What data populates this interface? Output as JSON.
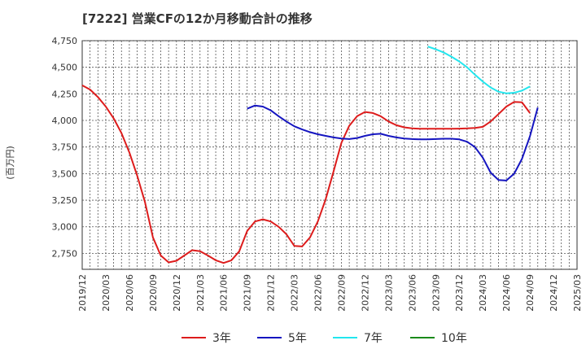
{
  "chart_data": {
    "type": "line",
    "title": "[7222]  営業CFの12か月移動合計の推移",
    "ylabel": "(百万円)",
    "ylim": [
      2600,
      4750
    ],
    "yticks": [
      2750,
      3000,
      3250,
      3500,
      3750,
      4000,
      4250,
      4500,
      4750
    ],
    "ytick_labels": [
      "2,750",
      "3,000",
      "3,250",
      "3,500",
      "3,750",
      "4,000",
      "4,250",
      "4,500",
      "4,750"
    ],
    "xticks": [
      "2019/12",
      "2020/03",
      "2020/06",
      "2020/09",
      "2020/12",
      "2021/03",
      "2021/06",
      "2021/09",
      "2021/12",
      "2022/03",
      "2022/06",
      "2022/09",
      "2022/12",
      "2023/03",
      "2023/06",
      "2023/09",
      "2023/12",
      "2024/03",
      "2024/06",
      "2024/09",
      "2024/12",
      "2025/03"
    ],
    "x_start": "2019/12",
    "x_end": "2025/03",
    "grid": true,
    "legend_position": "bottom",
    "series": [
      {
        "name": "3年",
        "color": "#dd1c1c",
        "points": [
          [
            "2019/12",
            4330
          ],
          [
            "2020/01",
            4290
          ],
          [
            "2020/02",
            4220
          ],
          [
            "2020/03",
            4130
          ],
          [
            "2020/04",
            4020
          ],
          [
            "2020/05",
            3880
          ],
          [
            "2020/06",
            3700
          ],
          [
            "2020/07",
            3480
          ],
          [
            "2020/08",
            3230
          ],
          [
            "2020/09",
            2900
          ],
          [
            "2020/10",
            2730
          ],
          [
            "2020/11",
            2665
          ],
          [
            "2020/12",
            2680
          ],
          [
            "2021/01",
            2730
          ],
          [
            "2021/02",
            2780
          ],
          [
            "2021/03",
            2770
          ],
          [
            "2021/04",
            2730
          ],
          [
            "2021/05",
            2685
          ],
          [
            "2021/06",
            2660
          ],
          [
            "2021/07",
            2685
          ],
          [
            "2021/08",
            2770
          ],
          [
            "2021/09",
            2960
          ],
          [
            "2021/10",
            3050
          ],
          [
            "2021/11",
            3070
          ],
          [
            "2021/12",
            3050
          ],
          [
            "2022/01",
            3000
          ],
          [
            "2022/02",
            2930
          ],
          [
            "2022/03",
            2820
          ],
          [
            "2022/04",
            2815
          ],
          [
            "2022/05",
            2900
          ],
          [
            "2022/06",
            3050
          ],
          [
            "2022/07",
            3260
          ],
          [
            "2022/08",
            3520
          ],
          [
            "2022/09",
            3790
          ],
          [
            "2022/10",
            3950
          ],
          [
            "2022/11",
            4040
          ],
          [
            "2022/12",
            4080
          ],
          [
            "2023/01",
            4070
          ],
          [
            "2023/02",
            4040
          ],
          [
            "2023/03",
            3990
          ],
          [
            "2023/04",
            3955
          ],
          [
            "2023/05",
            3935
          ],
          [
            "2023/06",
            3925
          ],
          [
            "2023/07",
            3922
          ],
          [
            "2023/08",
            3922
          ],
          [
            "2023/09",
            3922
          ],
          [
            "2023/10",
            3922
          ],
          [
            "2023/11",
            3922
          ],
          [
            "2023/12",
            3923
          ],
          [
            "2024/01",
            3925
          ],
          [
            "2024/02",
            3930
          ],
          [
            "2024/03",
            3940
          ],
          [
            "2024/04",
            3990
          ],
          [
            "2024/05",
            4060
          ],
          [
            "2024/06",
            4130
          ],
          [
            "2024/07",
            4175
          ],
          [
            "2024/08",
            4170
          ],
          [
            "2024/09",
            4070
          ]
        ]
      },
      {
        "name": "5年",
        "color": "#1515c0",
        "points": [
          [
            "2021/09",
            4110
          ],
          [
            "2021/10",
            4140
          ],
          [
            "2021/11",
            4130
          ],
          [
            "2021/12",
            4095
          ],
          [
            "2022/01",
            4040
          ],
          [
            "2022/02",
            3990
          ],
          [
            "2022/03",
            3945
          ],
          [
            "2022/04",
            3915
          ],
          [
            "2022/05",
            3890
          ],
          [
            "2022/06",
            3870
          ],
          [
            "2022/07",
            3855
          ],
          [
            "2022/08",
            3840
          ],
          [
            "2022/09",
            3830
          ],
          [
            "2022/10",
            3825
          ],
          [
            "2022/11",
            3835
          ],
          [
            "2022/12",
            3855
          ],
          [
            "2023/01",
            3870
          ],
          [
            "2023/02",
            3875
          ],
          [
            "2023/03",
            3855
          ],
          [
            "2023/04",
            3840
          ],
          [
            "2023/05",
            3830
          ],
          [
            "2023/06",
            3825
          ],
          [
            "2023/07",
            3823
          ],
          [
            "2023/08",
            3823
          ],
          [
            "2023/09",
            3825
          ],
          [
            "2023/10",
            3828
          ],
          [
            "2023/11",
            3828
          ],
          [
            "2023/12",
            3822
          ],
          [
            "2024/01",
            3800
          ],
          [
            "2024/02",
            3750
          ],
          [
            "2024/03",
            3650
          ],
          [
            "2024/04",
            3510
          ],
          [
            "2024/05",
            3440
          ],
          [
            "2024/06",
            3435
          ],
          [
            "2024/07",
            3500
          ],
          [
            "2024/08",
            3640
          ],
          [
            "2024/09",
            3850
          ],
          [
            "2024/10",
            4120
          ]
        ]
      },
      {
        "name": "7年",
        "color": "#22e6ee",
        "points": [
          [
            "2023/08",
            4695
          ],
          [
            "2023/09",
            4670
          ],
          [
            "2023/10",
            4640
          ],
          [
            "2023/11",
            4600
          ],
          [
            "2023/12",
            4555
          ],
          [
            "2024/01",
            4500
          ],
          [
            "2024/02",
            4430
          ],
          [
            "2024/03",
            4365
          ],
          [
            "2024/04",
            4310
          ],
          [
            "2024/05",
            4270
          ],
          [
            "2024/06",
            4255
          ],
          [
            "2024/07",
            4260
          ],
          [
            "2024/08",
            4280
          ],
          [
            "2024/09",
            4320
          ]
        ]
      },
      {
        "name": "10年",
        "color": "#1a8a1a",
        "points": []
      }
    ]
  }
}
